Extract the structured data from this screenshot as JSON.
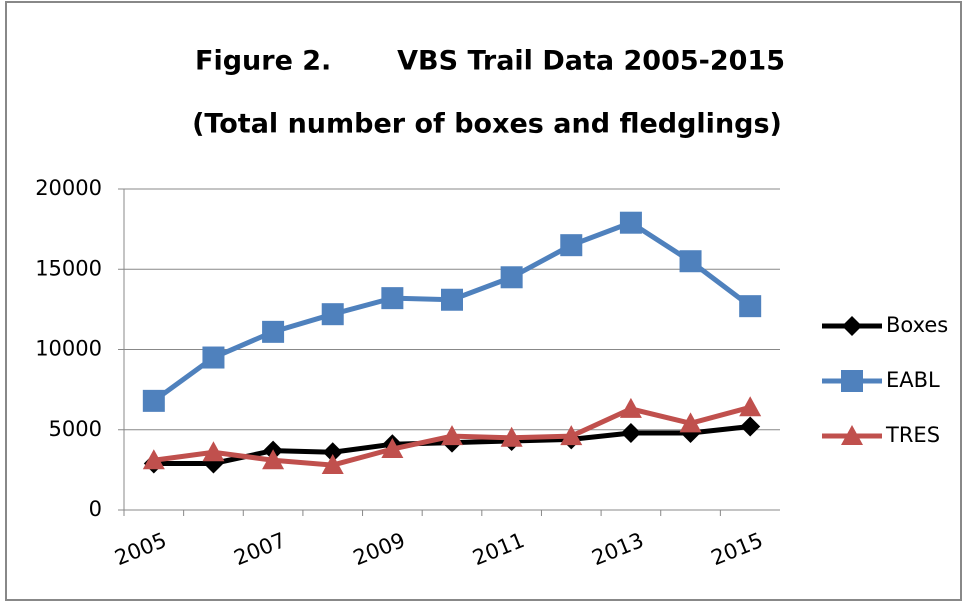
{
  "chart_data": {
    "type": "line",
    "title": "Figure 2.       VBS Trail Data 2005-2015",
    "subtitle": "(Total number of boxes and fledglings)",
    "categories": [
      "2005",
      null,
      "2007",
      null,
      "2009",
      null,
      "2011",
      null,
      "2013",
      null,
      "2015"
    ],
    "series": [
      {
        "name": "Boxes",
        "color": "#000000",
        "marker": "diamond",
        "values": [
          2900,
          2900,
          3700,
          3600,
          4100,
          4200,
          4300,
          4400,
          4800,
          4800,
          5200
        ]
      },
      {
        "name": "EABL",
        "color": "#4f81bd",
        "marker": "square",
        "values": [
          6800,
          9500,
          11100,
          12200,
          13200,
          13100,
          14500,
          16500,
          17900,
          15500,
          12700
        ]
      },
      {
        "name": "TRES",
        "color": "#c0504d",
        "marker": "triangle",
        "values": [
          3100,
          3600,
          3100,
          2800,
          3800,
          4600,
          4500,
          4600,
          6300,
          5400,
          6400
        ]
      }
    ],
    "ylim": [
      0,
      20000
    ],
    "yticks": [
      0,
      5000,
      10000,
      15000,
      20000
    ],
    "grid": true,
    "legend": "right"
  }
}
